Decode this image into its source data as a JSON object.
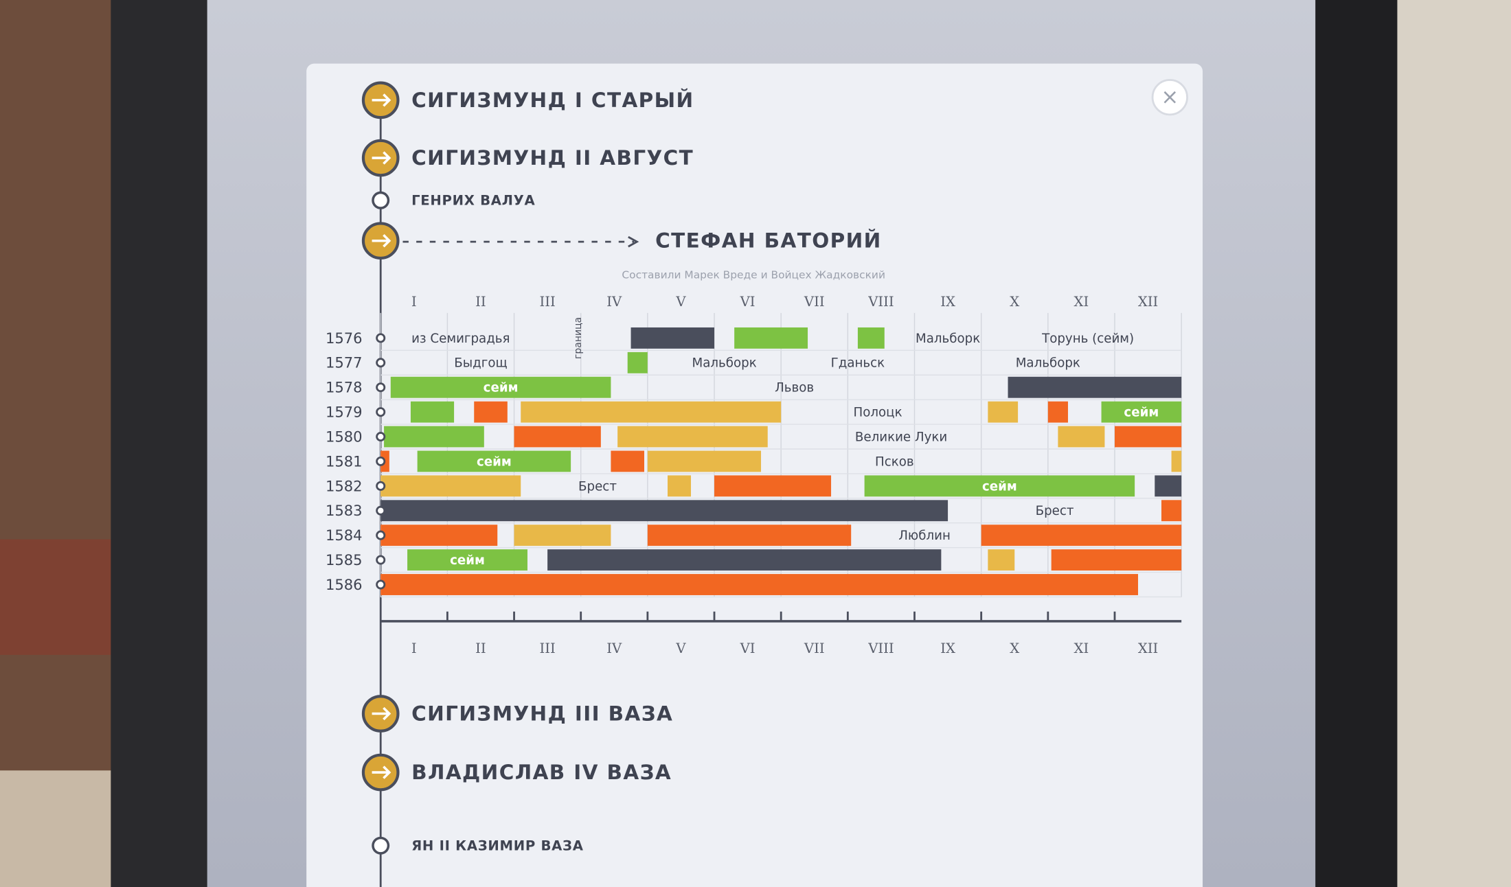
{
  "rulers": [
    {
      "name": "СИГИЗМУНД I СТАРЫЙ",
      "kind": "major"
    },
    {
      "name": "СИГИЗМУНД II АВГУСТ",
      "kind": "major"
    },
    {
      "name": "ГЕНРИХ ВАЛУА",
      "kind": "minor"
    },
    {
      "name": "СТЕФАН БАТОРИЙ",
      "kind": "major",
      "expanded": true
    },
    {
      "name": "СИГИЗМУНД III ВАЗА",
      "kind": "major"
    },
    {
      "name": "ВЛАДИСЛАВ IV ВАЗА",
      "kind": "major"
    },
    {
      "name": "ЯН II КАЗИМИР ВАЗА",
      "kind": "minor"
    }
  ],
  "close_button": "×",
  "chart_data": {
    "type": "gantt",
    "subtitle": "Составили Марек Вреде и Войцех Жадковский",
    "categories": [
      "I",
      "II",
      "III",
      "IV",
      "V",
      "VI",
      "VII",
      "VIII",
      "IX",
      "X",
      "XI",
      "XII"
    ],
    "years": [
      "1576",
      "1577",
      "1578",
      "1579",
      "1580",
      "1581",
      "1582",
      "1583",
      "1584",
      "1585",
      "1586"
    ],
    "xlim": [
      0,
      12
    ],
    "rows": [
      {
        "segments": [
          {
            "start": 3.75,
            "end": 5.0,
            "color": "#4a4e5c"
          },
          {
            "start": 5.3,
            "end": 6.4,
            "color": "#7dc243"
          },
          {
            "start": 7.15,
            "end": 7.55,
            "color": "#7dc243"
          }
        ],
        "places": [
          {
            "text": "из Семиградья",
            "month": 1.2
          },
          {
            "text": "граница",
            "month": 2.96,
            "vertical": true
          },
          {
            "text": "Мальборк",
            "month": 8.5
          },
          {
            "text": "Торунь (сейм)",
            "month": 10.6
          }
        ]
      },
      {
        "segments": [
          {
            "start": 3.7,
            "end": 4.0,
            "color": "#7dc243"
          }
        ],
        "places": [
          {
            "text": "Быдгощ",
            "month": 1.5
          },
          {
            "text": "Мальборк",
            "month": 5.15
          },
          {
            "text": "Гданьск",
            "month": 7.15
          },
          {
            "text": "Мальборк",
            "month": 10.0
          }
        ]
      },
      {
        "segments": [
          {
            "start": 0.15,
            "end": 3.45,
            "color": "#7dc243",
            "label": "сейм"
          },
          {
            "start": 9.4,
            "end": 12,
            "color": "#4a4e5c"
          }
        ],
        "places": [
          {
            "text": "Львов",
            "month": 6.2
          }
        ]
      },
      {
        "segments": [
          {
            "start": 0.45,
            "end": 1.1,
            "color": "#7dc243"
          },
          {
            "start": 1.4,
            "end": 1.9,
            "color": "#f26722"
          },
          {
            "start": 2.1,
            "end": 6.0,
            "color": "#e8b848"
          },
          {
            "start": 9.1,
            "end": 9.55,
            "color": "#e8b848"
          },
          {
            "start": 10.0,
            "end": 10.3,
            "color": "#f26722"
          },
          {
            "start": 10.8,
            "end": 12,
            "color": "#7dc243",
            "label": "сейм"
          }
        ],
        "places": [
          {
            "text": "Полоцк",
            "month": 7.45
          }
        ]
      },
      {
        "segments": [
          {
            "start": 0.05,
            "end": 1.55,
            "color": "#7dc243"
          },
          {
            "start": 2.0,
            "end": 3.3,
            "color": "#f26722"
          },
          {
            "start": 3.55,
            "end": 5.8,
            "color": "#e8b848"
          },
          {
            "start": 10.15,
            "end": 10.85,
            "color": "#e8b848"
          },
          {
            "start": 11.0,
            "end": 12,
            "color": "#f26722"
          }
        ],
        "places": [
          {
            "text": "Великие Луки",
            "month": 7.8
          }
        ]
      },
      {
        "segments": [
          {
            "start": 0,
            "end": 0.13,
            "color": "#f26722"
          },
          {
            "start": 0.55,
            "end": 2.85,
            "color": "#7dc243",
            "label": "сейм"
          },
          {
            "start": 3.45,
            "end": 3.95,
            "color": "#f26722"
          },
          {
            "start": 4.0,
            "end": 5.7,
            "color": "#e8b848"
          },
          {
            "start": 11.85,
            "end": 12,
            "color": "#e8b848"
          }
        ],
        "places": [
          {
            "text": "Псков",
            "month": 7.7
          }
        ]
      },
      {
        "segments": [
          {
            "start": 0,
            "end": 2.1,
            "color": "#e8b848"
          },
          {
            "start": 4.3,
            "end": 4.65,
            "color": "#e8b848"
          },
          {
            "start": 5.0,
            "end": 6.75,
            "color": "#f26722"
          },
          {
            "start": 7.25,
            "end": 11.3,
            "color": "#7dc243",
            "label": "сейм"
          },
          {
            "start": 11.6,
            "end": 12,
            "color": "#4a4e5c"
          }
        ],
        "places": [
          {
            "text": "Брест",
            "month": 3.25
          }
        ]
      },
      {
        "segments": [
          {
            "start": 0,
            "end": 8.5,
            "color": "#4a4e5c"
          },
          {
            "start": 11.7,
            "end": 12,
            "color": "#f26722"
          }
        ],
        "places": [
          {
            "text": "Брест",
            "month": 10.1
          }
        ]
      },
      {
        "segments": [
          {
            "start": 0,
            "end": 1.75,
            "color": "#f26722"
          },
          {
            "start": 2.0,
            "end": 3.45,
            "color": "#e8b848"
          },
          {
            "start": 4.0,
            "end": 7.05,
            "color": "#f26722"
          },
          {
            "start": 9.0,
            "end": 12,
            "color": "#f26722"
          }
        ],
        "places": [
          {
            "text": "Люблин",
            "month": 8.15
          }
        ]
      },
      {
        "segments": [
          {
            "start": 0.4,
            "end": 2.2,
            "color": "#7dc243",
            "label": "сейм"
          },
          {
            "start": 2.5,
            "end": 8.4,
            "color": "#4a4e5c"
          },
          {
            "start": 9.1,
            "end": 9.5,
            "color": "#e8b848"
          },
          {
            "start": 10.05,
            "end": 12,
            "color": "#f26722"
          }
        ],
        "places": []
      },
      {
        "segments": [
          {
            "start": 0,
            "end": 11.35,
            "color": "#f26722"
          }
        ],
        "places": []
      }
    ]
  }
}
